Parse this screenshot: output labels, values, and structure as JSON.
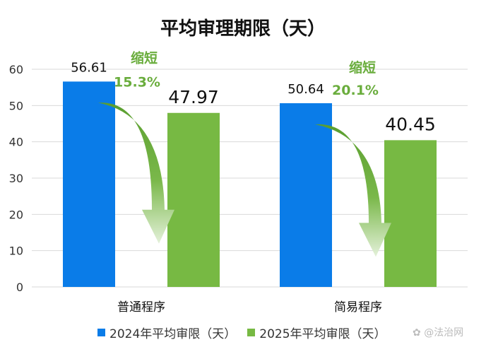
{
  "chart_data": {
    "type": "bar",
    "title": "平均审理期限（天）",
    "categories": [
      "普通程序",
      "简易程序"
    ],
    "series": [
      {
        "name": "2024年平均审限（天）",
        "values": [
          56.61,
          50.64
        ],
        "color": "#0a7ce8"
      },
      {
        "name": "2025年平均审限（天）",
        "values": [
          47.97,
          40.45
        ],
        "color": "#77b943"
      }
    ],
    "annotations": [
      {
        "label": "缩短",
        "value": "15.3%"
      },
      {
        "label": "缩短",
        "value": "20.1%"
      }
    ],
    "ylim": [
      0,
      60
    ],
    "yticks": [
      0,
      10,
      20,
      30,
      40,
      50,
      60
    ],
    "grid": true,
    "legend": "bottom",
    "annotation_color": "#6aad3d"
  },
  "watermark": "@法治网"
}
